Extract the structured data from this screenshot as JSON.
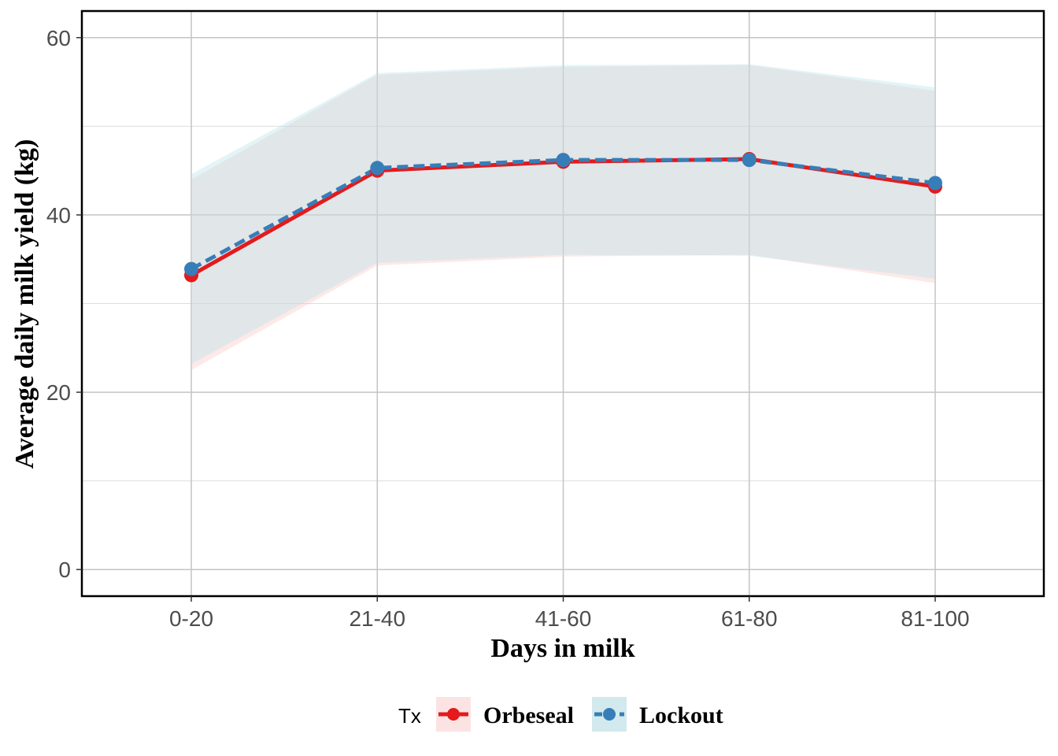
{
  "chart_data": {
    "type": "line",
    "xlabel": "Days in milk",
    "ylabel": "Average daily milk yield (kg)",
    "categories": [
      "0-20",
      "21-40",
      "41-60",
      "61-80",
      "81-100"
    ],
    "ylim": [
      -3,
      63
    ],
    "yticks": [
      0,
      20,
      40,
      60
    ],
    "grid": true,
    "legend": {
      "title": "Tx",
      "position": "bottom"
    },
    "series": [
      {
        "name": "Orbeseal",
        "color": "#e41a1c",
        "line_style": "solid",
        "values": [
          33.2,
          45.0,
          46.0,
          46.3,
          43.2
        ],
        "ci_lower": [
          22.5,
          34.3,
          35.3,
          35.5,
          32.3
        ],
        "ci_upper": [
          44.0,
          55.8,
          56.7,
          56.9,
          54.0
        ]
      },
      {
        "name": "Lockout",
        "color": "#377eb8",
        "line_style": "dashed",
        "values": [
          33.9,
          45.3,
          46.2,
          46.2,
          43.6
        ],
        "ci_lower": [
          23.2,
          34.6,
          35.5,
          35.4,
          32.8
        ],
        "ci_upper": [
          44.6,
          56.0,
          56.9,
          57.0,
          54.4
        ]
      }
    ]
  }
}
